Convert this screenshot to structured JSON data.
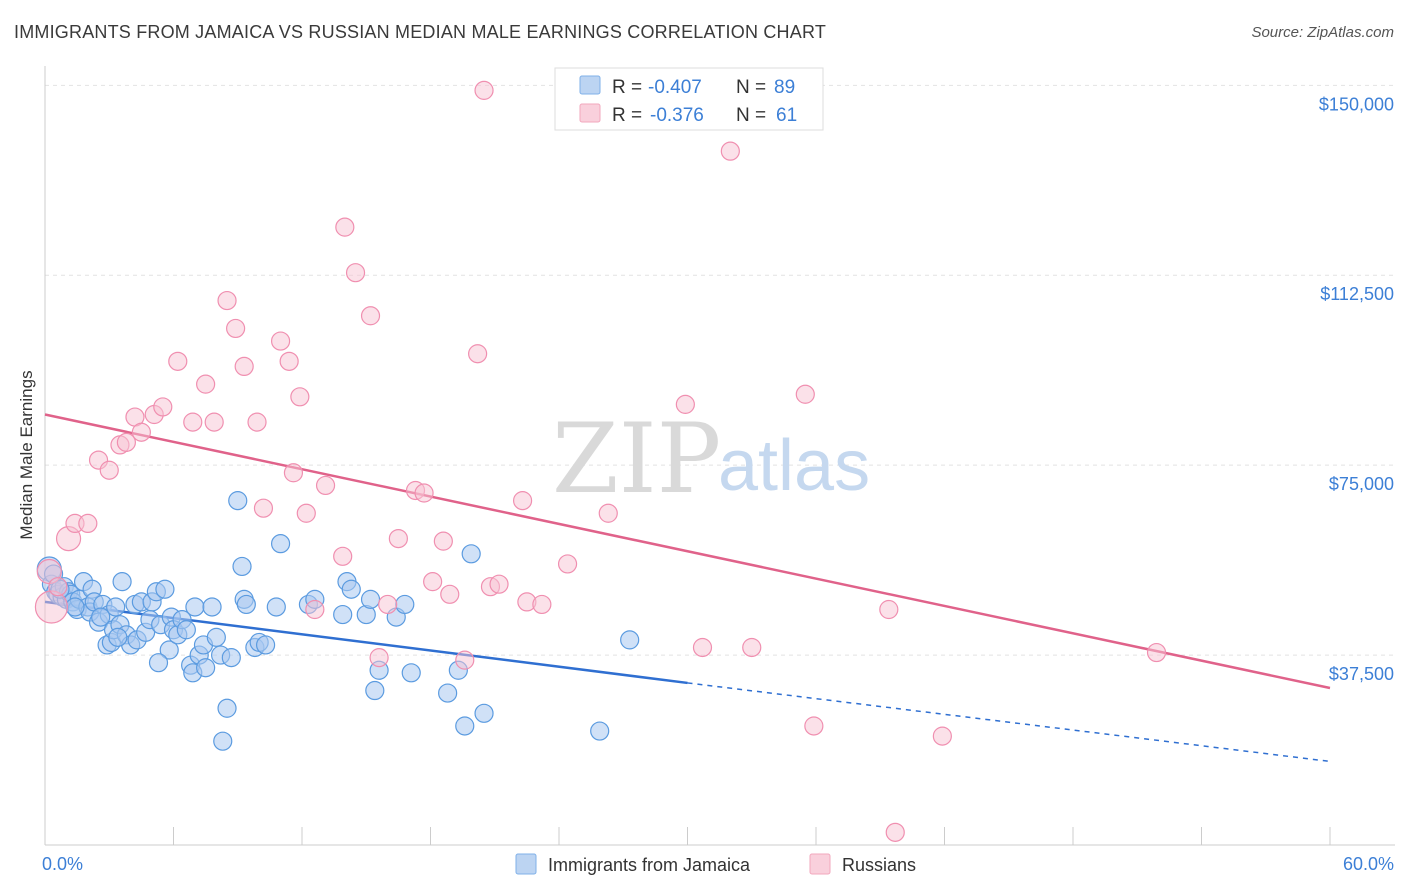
{
  "title": "IMMIGRANTS FROM JAMAICA VS RUSSIAN MEDIAN MALE EARNINGS CORRELATION CHART",
  "source": "Source: ZipAtlas.com",
  "watermark": {
    "part1": "ZIP",
    "part2": "atlas"
  },
  "legend": {
    "r_label": "R =",
    "n_label": "N =",
    "rows": [
      {
        "r": "-0.407",
        "n": "89",
        "color": "#7fb0e8"
      },
      {
        "r": "-0.376",
        "n": "61",
        "color": "#f2a7bd"
      }
    ]
  },
  "colors": {
    "blue": "#5b9be0",
    "blue_fill": "#a9c8f0",
    "blue_line": "#2f6fd1",
    "pink": "#f08fb0",
    "pink_fill": "#f7c4d4",
    "pink_line": "#e0628a",
    "axis_text": "#3c7fd6"
  },
  "chart_data": {
    "type": "scatter",
    "title": "IMMIGRANTS FROM JAMAICA VS RUSSIAN MEDIAN MALE EARNINGS CORRELATION CHART",
    "xlabel": "",
    "ylabel": "Median Male Earnings",
    "xlim": [
      0,
      60
    ],
    "ylim": [
      0,
      155000
    ],
    "x_tick_labels": [
      "0.0%",
      "60.0%"
    ],
    "y_ticks": [
      37500,
      75000,
      112500,
      150000
    ],
    "y_tick_labels": [
      "$37,500",
      "$75,000",
      "$112,500",
      "$150,000"
    ],
    "grid": true,
    "legend_position": "top-center",
    "series": [
      {
        "name": "Immigrants from Jamaica",
        "r": -0.407,
        "n": 89,
        "trend": {
          "x0": 0,
          "y0": 48000,
          "x1": 30,
          "y1": 32000,
          "dashed_to_x": 60,
          "dashed_to_y": 16500
        },
        "points": [
          [
            0.2,
            54500
          ],
          [
            0.3,
            51500
          ],
          [
            0.5,
            50000
          ],
          [
            0.6,
            49500
          ],
          [
            0.8,
            49000
          ],
          [
            0.9,
            51000
          ],
          [
            1.0,
            48500
          ],
          [
            1.1,
            50000
          ],
          [
            1.2,
            49500
          ],
          [
            1.3,
            48000
          ],
          [
            1.5,
            46500
          ],
          [
            1.6,
            48500
          ],
          [
            1.8,
            52000
          ],
          [
            2.0,
            47000
          ],
          [
            2.1,
            46000
          ],
          [
            2.2,
            50500
          ],
          [
            2.3,
            48000
          ],
          [
            2.5,
            44000
          ],
          [
            2.7,
            47500
          ],
          [
            2.9,
            39500
          ],
          [
            3.0,
            45500
          ],
          [
            3.1,
            40000
          ],
          [
            3.2,
            42500
          ],
          [
            3.3,
            47000
          ],
          [
            3.5,
            43500
          ],
          [
            3.6,
            52000
          ],
          [
            3.8,
            41500
          ],
          [
            4.0,
            39500
          ],
          [
            4.2,
            47500
          ],
          [
            4.3,
            40500
          ],
          [
            4.5,
            48000
          ],
          [
            4.7,
            42000
          ],
          [
            4.9,
            44500
          ],
          [
            5.0,
            48000
          ],
          [
            5.2,
            50000
          ],
          [
            5.4,
            43500
          ],
          [
            5.6,
            50500
          ],
          [
            5.8,
            38500
          ],
          [
            5.9,
            45000
          ],
          [
            6.0,
            42500
          ],
          [
            6.2,
            41500
          ],
          [
            6.4,
            44500
          ],
          [
            6.6,
            42500
          ],
          [
            6.8,
            35500
          ],
          [
            6.9,
            34000
          ],
          [
            7.0,
            47000
          ],
          [
            7.2,
            37500
          ],
          [
            7.4,
            39500
          ],
          [
            7.5,
            35000
          ],
          [
            7.8,
            47000
          ],
          [
            8.0,
            41000
          ],
          [
            8.2,
            37500
          ],
          [
            8.3,
            20500
          ],
          [
            8.5,
            27000
          ],
          [
            8.7,
            37000
          ],
          [
            9.0,
            68000
          ],
          [
            9.2,
            55000
          ],
          [
            9.3,
            48500
          ],
          [
            9.4,
            47500
          ],
          [
            9.8,
            39000
          ],
          [
            10.0,
            40000
          ],
          [
            10.3,
            39500
          ],
          [
            10.8,
            47000
          ],
          [
            11.0,
            59500
          ],
          [
            12.3,
            47500
          ],
          [
            12.6,
            48500
          ],
          [
            13.9,
            45500
          ],
          [
            14.1,
            52000
          ],
          [
            14.3,
            50500
          ],
          [
            15.0,
            45500
          ],
          [
            15.2,
            48500
          ],
          [
            15.4,
            30500
          ],
          [
            15.6,
            34500
          ],
          [
            16.4,
            45000
          ],
          [
            16.8,
            47500
          ],
          [
            17.1,
            34000
          ],
          [
            18.8,
            30000
          ],
          [
            19.3,
            34500
          ],
          [
            19.6,
            23500
          ],
          [
            19.9,
            57500
          ],
          [
            20.5,
            26000
          ],
          [
            25.9,
            22500
          ],
          [
            27.3,
            40500
          ],
          [
            0.4,
            53500
          ],
          [
            0.7,
            50500
          ],
          [
            1.4,
            47000
          ],
          [
            2.6,
            45000
          ],
          [
            3.4,
            41000
          ],
          [
            5.3,
            36000
          ]
        ]
      },
      {
        "name": "Russians",
        "r": -0.376,
        "n": 61,
        "trend": {
          "x0": 0,
          "y0": 85000,
          "x1": 60,
          "y1": 31000
        },
        "points": [
          [
            0.2,
            54000
          ],
          [
            0.3,
            47000
          ],
          [
            0.6,
            51000
          ],
          [
            1.1,
            60500
          ],
          [
            1.4,
            63500
          ],
          [
            2.0,
            63500
          ],
          [
            2.5,
            76000
          ],
          [
            3.0,
            74000
          ],
          [
            3.5,
            79000
          ],
          [
            3.8,
            79500
          ],
          [
            4.2,
            84500
          ],
          [
            4.5,
            81500
          ],
          [
            5.1,
            85000
          ],
          [
            5.5,
            86500
          ],
          [
            6.2,
            95500
          ],
          [
            6.9,
            83500
          ],
          [
            7.5,
            91000
          ],
          [
            7.9,
            83500
          ],
          [
            8.5,
            107500
          ],
          [
            8.9,
            102000
          ],
          [
            9.3,
            94500
          ],
          [
            9.9,
            83500
          ],
          [
            10.2,
            66500
          ],
          [
            11.0,
            99500
          ],
          [
            11.4,
            95500
          ],
          [
            11.6,
            73500
          ],
          [
            11.9,
            88500
          ],
          [
            12.2,
            65500
          ],
          [
            12.6,
            46500
          ],
          [
            13.1,
            71000
          ],
          [
            13.9,
            57000
          ],
          [
            14.0,
            122000
          ],
          [
            14.5,
            113000
          ],
          [
            15.2,
            104500
          ],
          [
            15.6,
            37000
          ],
          [
            16.0,
            47500
          ],
          [
            16.5,
            60500
          ],
          [
            17.3,
            70000
          ],
          [
            17.7,
            69500
          ],
          [
            18.1,
            52000
          ],
          [
            18.6,
            60000
          ],
          [
            18.9,
            49500
          ],
          [
            19.6,
            36500
          ],
          [
            20.2,
            97000
          ],
          [
            20.8,
            51000
          ],
          [
            21.2,
            51500
          ],
          [
            22.3,
            68000
          ],
          [
            22.5,
            48000
          ],
          [
            23.2,
            47500
          ],
          [
            24.4,
            55500
          ],
          [
            26.3,
            65500
          ],
          [
            29.9,
            87000
          ],
          [
            30.7,
            39000
          ],
          [
            33.0,
            39000
          ],
          [
            35.5,
            89000
          ],
          [
            35.9,
            23500
          ],
          [
            39.4,
            46500
          ],
          [
            39.7,
            2500
          ],
          [
            41.9,
            21500
          ],
          [
            51.9,
            38000
          ],
          [
            20.5,
            149000
          ]
        ]
      }
    ],
    "extra_points": [
      [
        32.0,
        137000
      ]
    ]
  }
}
